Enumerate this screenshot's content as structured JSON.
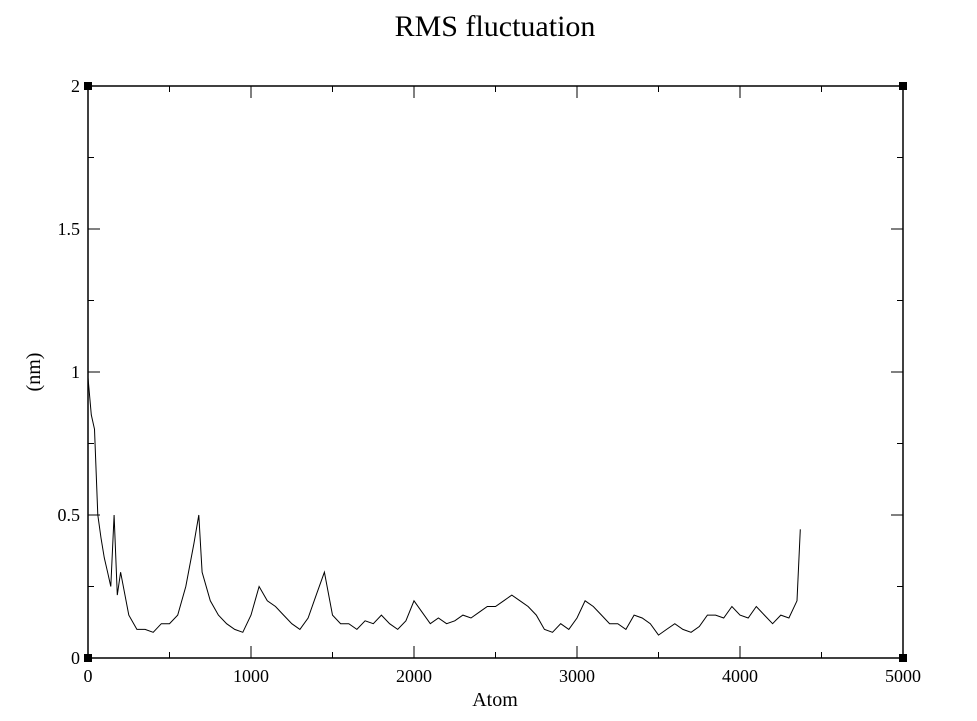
{
  "chart_data": {
    "type": "line",
    "title": "RMS fluctuation",
    "xlabel": "Atom",
    "ylabel": "(nm)",
    "xlim": [
      0,
      5000
    ],
    "ylim": [
      0,
      2
    ],
    "x_ticks": [
      0,
      1000,
      2000,
      3000,
      4000,
      5000
    ],
    "x_tick_labels": [
      "0",
      "1000",
      "2000",
      "3000",
      "4000",
      "5000"
    ],
    "y_ticks": [
      0,
      0.5,
      1,
      1.5,
      2
    ],
    "y_tick_labels": [
      "0",
      "0.5",
      "1",
      "1.5",
      "2"
    ],
    "grid": false,
    "legend": "none",
    "line_color": "#000000",
    "series": [
      {
        "x": [
          0,
          20,
          40,
          60,
          80,
          100,
          120,
          140,
          160,
          180,
          200,
          250,
          300,
          350,
          400,
          450,
          500,
          550,
          600,
          650,
          680,
          700,
          750,
          800,
          850,
          900,
          950,
          1000,
          1050,
          1100,
          1150,
          1200,
          1250,
          1300,
          1350,
          1400,
          1450,
          1500,
          1550,
          1600,
          1650,
          1700,
          1750,
          1800,
          1850,
          1900,
          1950,
          2000,
          2050,
          2100,
          2150,
          2200,
          2250,
          2300,
          2350,
          2400,
          2450,
          2500,
          2550,
          2600,
          2650,
          2700,
          2750,
          2800,
          2850,
          2900,
          2950,
          3000,
          3050,
          3100,
          3150,
          3200,
          3250,
          3300,
          3350,
          3400,
          3450,
          3500,
          3550,
          3600,
          3650,
          3700,
          3750,
          3800,
          3850,
          3900,
          3950,
          4000,
          4050,
          4100,
          4150,
          4200,
          4250,
          4300,
          4350,
          4370
        ],
        "y": [
          0.98,
          0.85,
          0.8,
          0.5,
          0.42,
          0.35,
          0.3,
          0.25,
          0.5,
          0.22,
          0.3,
          0.15,
          0.1,
          0.1,
          0.09,
          0.12,
          0.12,
          0.15,
          0.25,
          0.4,
          0.5,
          0.3,
          0.2,
          0.15,
          0.12,
          0.1,
          0.09,
          0.15,
          0.25,
          0.2,
          0.18,
          0.15,
          0.12,
          0.1,
          0.14,
          0.22,
          0.3,
          0.15,
          0.12,
          0.12,
          0.1,
          0.13,
          0.12,
          0.15,
          0.12,
          0.1,
          0.13,
          0.2,
          0.16,
          0.12,
          0.14,
          0.12,
          0.13,
          0.15,
          0.14,
          0.16,
          0.18,
          0.18,
          0.2,
          0.22,
          0.2,
          0.18,
          0.15,
          0.1,
          0.09,
          0.12,
          0.1,
          0.14,
          0.2,
          0.18,
          0.15,
          0.12,
          0.12,
          0.1,
          0.15,
          0.14,
          0.12,
          0.08,
          0.1,
          0.12,
          0.1,
          0.09,
          0.11,
          0.15,
          0.15,
          0.14,
          0.18,
          0.15,
          0.14,
          0.18,
          0.15,
          0.12,
          0.15,
          0.14,
          0.2,
          0.45
        ]
      }
    ]
  }
}
